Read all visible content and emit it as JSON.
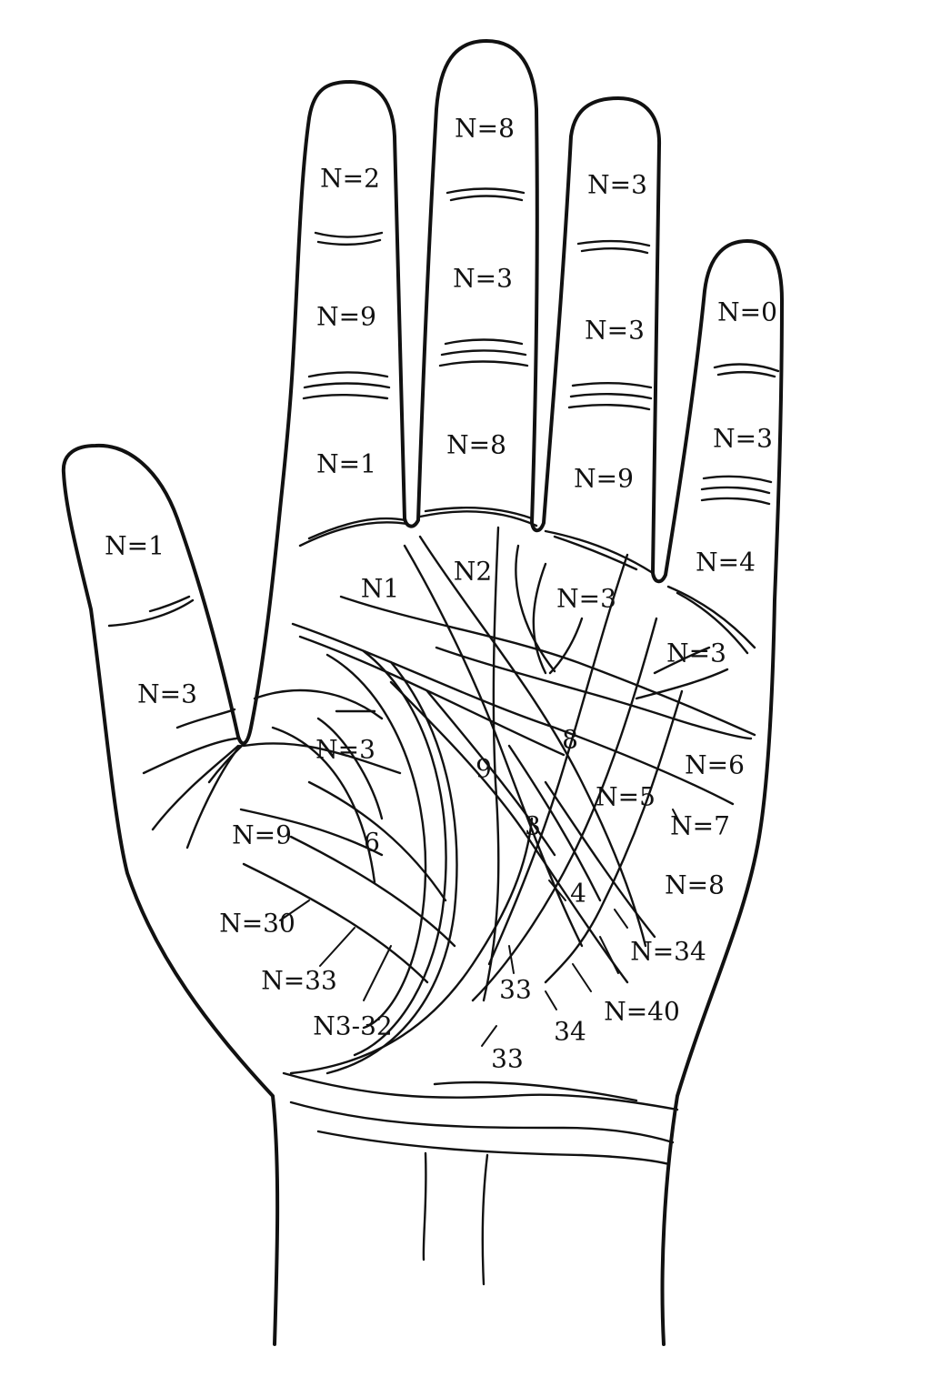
{
  "diagram": {
    "ink_color": "#111111",
    "background_color": "#ffffff",
    "finger_labels": {
      "thumb": [
        "N=1",
        "N=3"
      ],
      "index": [
        "N=2",
        "N=9",
        "N=1"
      ],
      "middle": [
        "N=8",
        "N=3",
        "N=8"
      ],
      "ring": [
        "N=3",
        "N=3",
        "N=9"
      ],
      "little": [
        "N=0",
        "N=3",
        "N=4"
      ]
    },
    "palm_labels": [
      "N1",
      "N2",
      "N=3",
      "N=3",
      "N=3",
      "N=6",
      "N=5",
      "N=7",
      "8",
      "9",
      "3",
      "N=8",
      "N=9",
      "6",
      "4",
      "N=30",
      "N=33",
      "N3-32",
      "N=34",
      "33",
      "N=40",
      "34",
      "33"
    ]
  }
}
